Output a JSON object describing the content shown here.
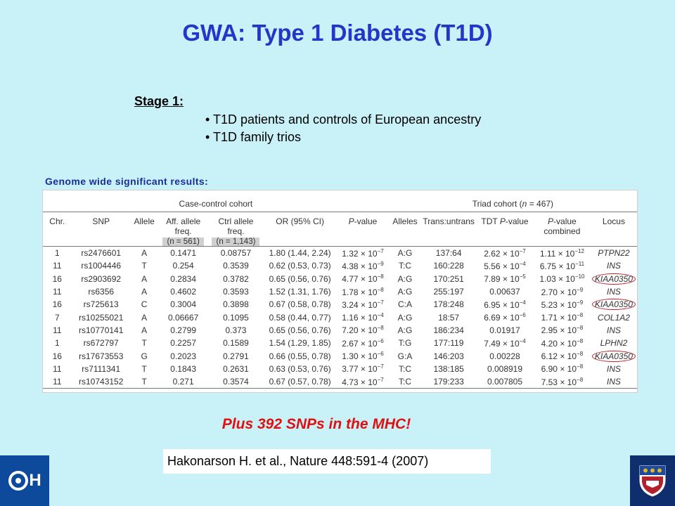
{
  "title": "GWA: Type 1 Diabetes (T1D)",
  "stage": {
    "label": "Stage 1:",
    "bullets": [
      "• T1D patients and controls of European ancestry",
      "• T1D family trios"
    ]
  },
  "results_label": "Genome wide significant results:",
  "table": {
    "group_case": "Case-control cohort",
    "group_triad_prefix": "Triad cohort (",
    "group_triad_n": "n",
    "group_triad_suffix": " = 467)",
    "headers": {
      "chr": "Chr.",
      "snp": "SNP",
      "allele": "Allele",
      "aff_freq": "Aff. allele freq.",
      "aff_n": "(n = 561)",
      "ctrl_freq": "Ctrl allele freq.",
      "ctrl_n": "(n = 1,143)",
      "or": "OR (95% CI)",
      "p_prefix": "P",
      "p_suffix": "-value",
      "alleles": "Alleles",
      "trans": "Trans:untrans",
      "tdt_prefix": "TDT ",
      "tdt_p": "P",
      "tdt_suffix": "-value",
      "comb_prefix": "P",
      "comb_suffix": "-value combined",
      "locus": "Locus"
    },
    "rows": [
      {
        "chr": "1",
        "snp": "rs2476601",
        "allele": "A",
        "aff": "0.1471",
        "ctrl": "0.08757",
        "or": "1.80 (1.44, 2.24)",
        "p": "1.32 × 10",
        "p_exp": "−7",
        "alleles": "A:G",
        "trans": "137:64",
        "tdt": "2.62 × 10",
        "tdt_exp": "−7",
        "comb": "1.11 × 10",
        "comb_exp": "−12",
        "locus": "PTPN22",
        "circled": false
      },
      {
        "chr": "11",
        "snp": "rs1004446",
        "allele": "T",
        "aff": "0.254",
        "ctrl": "0.3539",
        "or": "0.62 (0.53, 0.73)",
        "p": "4.38 × 10",
        "p_exp": "−9",
        "alleles": "T:C",
        "trans": "160:228",
        "tdt": "5.56 × 10",
        "tdt_exp": "−4",
        "comb": "6.75 × 10",
        "comb_exp": "−11",
        "locus": "INS",
        "circled": false
      },
      {
        "chr": "16",
        "snp": "rs2903692",
        "allele": "A",
        "aff": "0.2834",
        "ctrl": "0.3782",
        "or": "0.65 (0.56, 0.76)",
        "p": "4.77 × 10",
        "p_exp": "−8",
        "alleles": "A:G",
        "trans": "170:251",
        "tdt": "7.89 × 10",
        "tdt_exp": "−5",
        "comb": "1.03 × 10",
        "comb_exp": "−10",
        "locus": "KIAA0350",
        "circled": true
      },
      {
        "chr": "11",
        "snp": "rs6356",
        "allele": "A",
        "aff": "0.4602",
        "ctrl": "0.3593",
        "or": "1.52 (1.31, 1.76)",
        "p": "1.78 × 10",
        "p_exp": "−8",
        "alleles": "A:G",
        "trans": "255:197",
        "tdt": "0.00637",
        "tdt_exp": "",
        "comb": "2.70 × 10",
        "comb_exp": "−9",
        "locus": "INS",
        "circled": false
      },
      {
        "chr": "16",
        "snp": "rs725613",
        "allele": "C",
        "aff": "0.3004",
        "ctrl": "0.3898",
        "or": "0.67 (0.58, 0.78)",
        "p": "3.24 × 10",
        "p_exp": "−7",
        "alleles": "C:A",
        "trans": "178:248",
        "tdt": "6.95 × 10",
        "tdt_exp": "−4",
        "comb": "5.23 × 10",
        "comb_exp": "−9",
        "locus": "KIAA0350",
        "circled": true
      },
      {
        "chr": "7",
        "snp": "rs10255021",
        "allele": "A",
        "aff": "0.06667",
        "ctrl": "0.1095",
        "or": "0.58 (0.44, 0.77)",
        "p": "1.16 × 10",
        "p_exp": "−4",
        "alleles": "A:G",
        "trans": "18:57",
        "tdt": "6.69 × 10",
        "tdt_exp": "−6",
        "comb": "1.71 × 10",
        "comb_exp": "−8",
        "locus": "COL1A2",
        "circled": false
      },
      {
        "chr": "11",
        "snp": "rs10770141",
        "allele": "A",
        "aff": "0.2799",
        "ctrl": "0.373",
        "or": "0.65 (0.56, 0.76)",
        "p": "7.20 × 10",
        "p_exp": "−8",
        "alleles": "A:G",
        "trans": "186:234",
        "tdt": "0.01917",
        "tdt_exp": "",
        "comb": "2.95 × 10",
        "comb_exp": "−8",
        "locus": "INS",
        "circled": false
      },
      {
        "chr": "1",
        "snp": "rs672797",
        "allele": "T",
        "aff": "0.2257",
        "ctrl": "0.1589",
        "or": "1.54 (1.29, 1.85)",
        "p": "2.67 × 10",
        "p_exp": "−6",
        "alleles": "T:G",
        "trans": "177:119",
        "tdt": "7.49 × 10",
        "tdt_exp": "−4",
        "comb": "4.20 × 10",
        "comb_exp": "−8",
        "locus": "LPHN2",
        "circled": false
      },
      {
        "chr": "16",
        "snp": "rs17673553",
        "allele": "G",
        "aff": "0.2023",
        "ctrl": "0.2791",
        "or": "0.66 (0.55, 0.78)",
        "p": "1.30 × 10",
        "p_exp": "−6",
        "alleles": "G:A",
        "trans": "146:203",
        "tdt": "0.00228",
        "tdt_exp": "",
        "comb": "6.12 × 10",
        "comb_exp": "−8",
        "locus": "KIAA0350",
        "circled": true
      },
      {
        "chr": "11",
        "snp": "rs7111341",
        "allele": "T",
        "aff": "0.1843",
        "ctrl": "0.2631",
        "or": "0.63 (0.53, 0.76)",
        "p": "3.77 × 10",
        "p_exp": "−7",
        "alleles": "T:C",
        "trans": "138:185",
        "tdt": "0.008919",
        "tdt_exp": "",
        "comb": "6.90 × 10",
        "comb_exp": "−8",
        "locus": "INS",
        "circled": false
      },
      {
        "chr": "11",
        "snp": "rs10743152",
        "allele": "T",
        "aff": "0.271",
        "ctrl": "0.3574",
        "or": "0.67 (0.57, 0.78)",
        "p": "4.73 × 10",
        "p_exp": "−7",
        "alleles": "T:C",
        "trans": "179:233",
        "tdt": "0.007805",
        "tdt_exp": "",
        "comb": "7.53 × 10",
        "comb_exp": "−8",
        "locus": "INS",
        "circled": false
      }
    ]
  },
  "footnote": "Plus 392 SNPs in the MHC!",
  "citation": "Hakonarson H. et al., Nature 448:591-4 (2007)",
  "logos": {
    "left_text": "H",
    "left_icon": "chop-logo-icon",
    "right_icon": "penn-shield-icon"
  },
  "colors": {
    "background": "#c9f1f8",
    "title": "#2436c8",
    "highlight": "#e01010",
    "circle": "#c0202a"
  }
}
